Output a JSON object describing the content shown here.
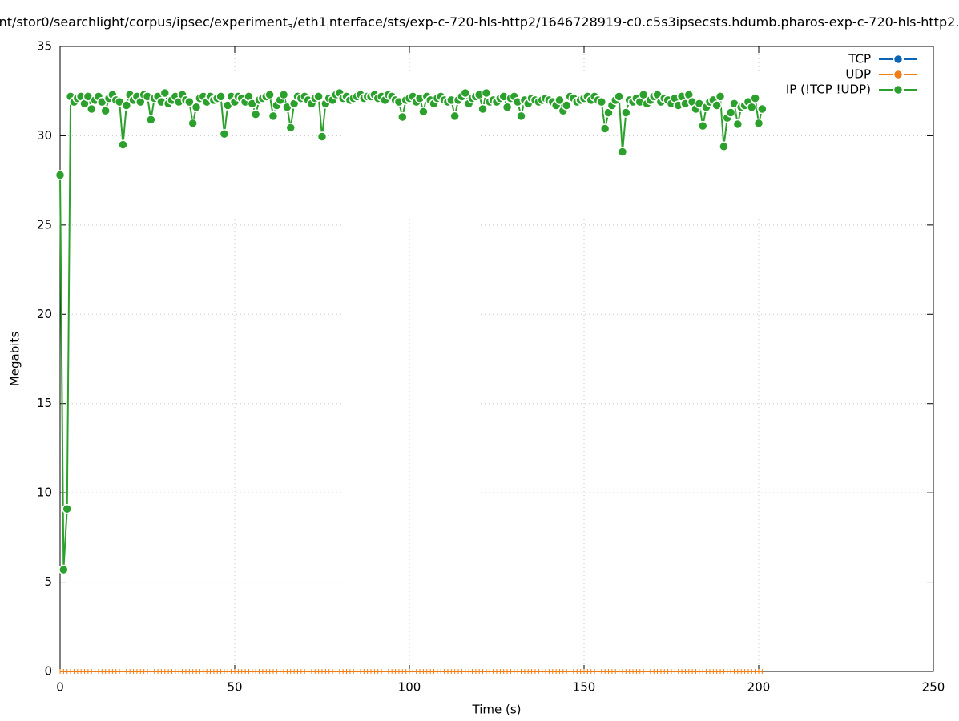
{
  "chart_data": {
    "type": "line",
    "title": [
      "nt/stor0/searchlight/corpus/ipsec/experiment",
      "3",
      "/eth1",
      "i",
      "nterface/sts/exp-c-720-hls-http2/1646728919-c0.c5s3ipsecsts.hdumb.pharos-exp-c-720-hls-http2."
    ],
    "x_label": "Time (s)",
    "y_label": "Megabits",
    "xlim": [
      0,
      250
    ],
    "xticks": [
      0,
      50,
      100,
      150,
      200,
      250
    ],
    "ylim": [
      0,
      35
    ],
    "yticks": [
      0,
      5,
      10,
      15,
      20,
      25,
      30,
      35
    ],
    "grid": true,
    "legend": "top-right",
    "x": [
      0,
      1,
      2,
      3,
      4,
      5,
      6,
      7,
      8,
      9,
      10,
      11,
      12,
      13,
      14,
      15,
      16,
      17,
      18,
      19,
      20,
      21,
      22,
      23,
      24,
      25,
      26,
      27,
      28,
      29,
      30,
      31,
      32,
      33,
      34,
      35,
      36,
      37,
      38,
      39,
      40,
      41,
      42,
      43,
      44,
      45,
      46,
      47,
      48,
      49,
      50,
      51,
      52,
      53,
      54,
      55,
      56,
      57,
      58,
      59,
      60,
      61,
      62,
      63,
      64,
      65,
      66,
      67,
      68,
      69,
      70,
      71,
      72,
      73,
      74,
      75,
      76,
      77,
      78,
      79,
      80,
      81,
      82,
      83,
      84,
      85,
      86,
      87,
      88,
      89,
      90,
      91,
      92,
      93,
      94,
      95,
      96,
      97,
      98,
      99,
      100,
      101,
      102,
      103,
      104,
      105,
      106,
      107,
      108,
      109,
      110,
      111,
      112,
      113,
      114,
      115,
      116,
      117,
      118,
      119,
      120,
      121,
      122,
      123,
      124,
      125,
      126,
      127,
      128,
      129,
      130,
      131,
      132,
      133,
      134,
      135,
      136,
      137,
      138,
      139,
      140,
      141,
      142,
      143,
      144,
      145,
      146,
      147,
      148,
      149,
      150,
      151,
      152,
      153,
      154,
      155,
      156,
      157,
      158,
      159,
      160,
      161,
      162,
      163,
      164,
      165,
      166,
      167,
      168,
      169,
      170,
      171,
      172,
      173,
      174,
      175,
      176,
      177,
      178,
      179,
      180,
      181,
      182,
      183,
      184,
      185,
      186,
      187,
      188,
      189,
      190,
      191,
      192,
      193,
      194,
      195,
      196,
      197,
      198,
      199,
      200,
      201
    ],
    "series": [
      {
        "name": "TCP",
        "color": "#0b64b4",
        "marker": "none",
        "values": [
          0,
          0,
          0,
          0,
          0,
          0,
          0,
          0,
          0,
          0,
          0,
          0,
          0,
          0,
          0,
          0,
          0,
          0,
          0,
          0,
          0,
          0,
          0,
          0,
          0,
          0,
          0,
          0,
          0,
          0,
          0,
          0,
          0,
          0,
          0,
          0,
          0,
          0,
          0,
          0,
          0,
          0,
          0,
          0,
          0,
          0,
          0,
          0,
          0,
          0,
          0,
          0,
          0,
          0,
          0,
          0,
          0,
          0,
          0,
          0,
          0,
          0,
          0,
          0,
          0,
          0,
          0,
          0,
          0,
          0,
          0,
          0,
          0,
          0,
          0,
          0,
          0,
          0,
          0,
          0,
          0,
          0,
          0,
          0,
          0,
          0,
          0,
          0,
          0,
          0,
          0,
          0,
          0,
          0,
          0,
          0,
          0,
          0,
          0,
          0,
          0,
          0,
          0,
          0,
          0,
          0,
          0,
          0,
          0,
          0,
          0,
          0,
          0,
          0,
          0,
          0,
          0,
          0,
          0,
          0,
          0,
          0,
          0,
          0,
          0,
          0,
          0,
          0,
          0,
          0,
          0,
          0,
          0,
          0,
          0,
          0,
          0,
          0,
          0,
          0,
          0,
          0,
          0,
          0,
          0,
          0,
          0,
          0,
          0,
          0,
          0,
          0,
          0,
          0,
          0,
          0,
          0,
          0,
          0,
          0,
          0,
          0,
          0,
          0,
          0,
          0,
          0,
          0,
          0,
          0,
          0,
          0,
          0,
          0,
          0,
          0,
          0,
          0,
          0,
          0,
          0,
          0,
          0,
          0,
          0,
          0,
          0,
          0,
          0,
          0,
          0,
          0,
          0,
          0,
          0,
          0,
          0,
          0,
          0,
          0,
          0,
          0
        ]
      },
      {
        "name": "UDP",
        "color": "#f07d16",
        "marker": "tick",
        "values": [
          0,
          0,
          0,
          0,
          0,
          0,
          0,
          0,
          0,
          0,
          0,
          0,
          0,
          0,
          0,
          0,
          0,
          0,
          0,
          0,
          0,
          0,
          0,
          0,
          0,
          0,
          0,
          0,
          0,
          0,
          0,
          0,
          0,
          0,
          0,
          0,
          0,
          0,
          0,
          0,
          0,
          0,
          0,
          0,
          0,
          0,
          0,
          0,
          0,
          0,
          0,
          0,
          0,
          0,
          0,
          0,
          0,
          0,
          0,
          0,
          0,
          0,
          0,
          0,
          0,
          0,
          0,
          0,
          0,
          0,
          0,
          0,
          0,
          0,
          0,
          0,
          0,
          0,
          0,
          0,
          0,
          0,
          0,
          0,
          0,
          0,
          0,
          0,
          0,
          0,
          0,
          0,
          0,
          0,
          0,
          0,
          0,
          0,
          0,
          0,
          0,
          0,
          0,
          0,
          0,
          0,
          0,
          0,
          0,
          0,
          0,
          0,
          0,
          0,
          0,
          0,
          0,
          0,
          0,
          0,
          0,
          0,
          0,
          0,
          0,
          0,
          0,
          0,
          0,
          0,
          0,
          0,
          0,
          0,
          0,
          0,
          0,
          0,
          0,
          0,
          0,
          0,
          0,
          0,
          0,
          0,
          0,
          0,
          0,
          0,
          0,
          0,
          0,
          0,
          0,
          0,
          0,
          0,
          0,
          0,
          0,
          0,
          0,
          0,
          0,
          0,
          0,
          0,
          0,
          0,
          0,
          0,
          0,
          0,
          0,
          0,
          0,
          0,
          0,
          0,
          0,
          0,
          0,
          0,
          0,
          0,
          0,
          0,
          0,
          0,
          0,
          0,
          0,
          0,
          0,
          0,
          0,
          0,
          0,
          0,
          0,
          0
        ]
      },
      {
        "name": "IP (!TCP  !UDP)",
        "color": "#2ca02c",
        "marker": "circle",
        "values": [
          27.8,
          5.7,
          9.1,
          32.2,
          31.9,
          32.1,
          32.2,
          31.8,
          32.2,
          31.5,
          32.0,
          32.2,
          31.9,
          31.4,
          32.1,
          32.3,
          32.0,
          31.9,
          29.5,
          31.7,
          32.3,
          32.0,
          32.2,
          31.9,
          32.3,
          32.2,
          30.9,
          32.1,
          32.2,
          31.9,
          32.4,
          31.8,
          32.0,
          32.2,
          31.9,
          32.3,
          32.0,
          31.9,
          30.7,
          31.6,
          32.1,
          32.2,
          31.9,
          32.2,
          32.0,
          32.1,
          32.2,
          30.1,
          31.7,
          32.2,
          31.9,
          32.2,
          32.1,
          31.9,
          32.2,
          31.8,
          31.2,
          32.0,
          32.1,
          32.2,
          32.3,
          31.1,
          31.7,
          32.0,
          32.3,
          31.6,
          30.45,
          31.8,
          32.2,
          32.1,
          32.2,
          32.0,
          31.8,
          32.1,
          32.2,
          29.95,
          31.8,
          32.1,
          32.0,
          32.3,
          32.4,
          32.1,
          32.2,
          32.0,
          32.1,
          32.2,
          32.3,
          32.1,
          32.2,
          32.2,
          32.3,
          32.1,
          32.2,
          32.0,
          32.3,
          32.2,
          32.0,
          31.9,
          31.05,
          32.0,
          32.1,
          32.2,
          31.9,
          32.1,
          31.35,
          32.2,
          32.0,
          31.8,
          32.1,
          32.2,
          32.0,
          31.9,
          32.0,
          31.1,
          32.0,
          32.2,
          32.4,
          31.8,
          32.1,
          32.2,
          32.3,
          31.5,
          32.4,
          31.9,
          32.0,
          31.9,
          32.1,
          32.2,
          31.6,
          32.1,
          32.2,
          31.9,
          31.1,
          32.0,
          31.8,
          32.1,
          32.0,
          31.9,
          32.0,
          32.1,
          32.0,
          31.9,
          31.7,
          32.0,
          31.4,
          31.7,
          32.2,
          32.1,
          31.9,
          32.0,
          32.1,
          32.2,
          32.0,
          32.2,
          32.0,
          31.9,
          30.4,
          31.3,
          31.7,
          32.0,
          32.2,
          29.1,
          31.3,
          32.0,
          31.9,
          32.1,
          31.9,
          32.3,
          31.8,
          32.0,
          32.2,
          32.3,
          31.9,
          32.1,
          32.0,
          31.8,
          32.1,
          31.7,
          32.2,
          31.8,
          32.3,
          31.9,
          31.5,
          31.8,
          30.55,
          31.6,
          31.9,
          32.0,
          31.7,
          32.2,
          29.4,
          31.0,
          31.3,
          31.8,
          30.65,
          31.6,
          31.7,
          31.9,
          31.6,
          32.1,
          30.7,
          31.5
        ]
      }
    ]
  }
}
